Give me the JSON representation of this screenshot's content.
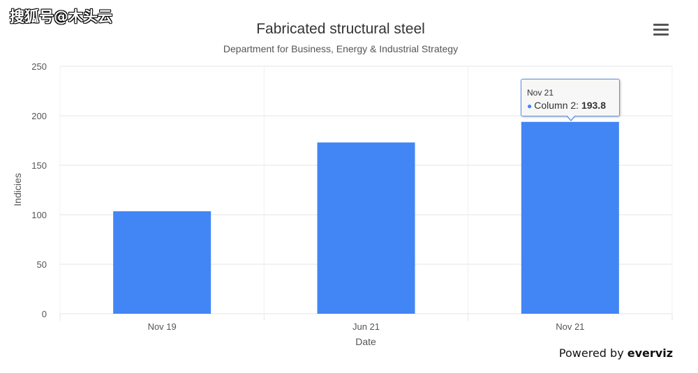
{
  "watermark": "搜狐号@木头云",
  "menu": {
    "icon": "hamburger-menu-icon"
  },
  "credits": {
    "prefix": "Powered by",
    "brand": "everviz"
  },
  "tooltip": {
    "header": "Nov 21",
    "series": "Column 2",
    "value": "193.8"
  },
  "colors": {
    "bar": "#4285f4",
    "grid": "#e6e6e6",
    "tooltip_border": "#5b8fe8"
  },
  "chart_data": {
    "type": "bar",
    "title": "Fabricated structural steel",
    "subtitle": "Department for Business, Energy & Industrial Strategy",
    "xlabel": "Date",
    "ylabel": "Indicies",
    "categories": [
      "Nov 19",
      "Jun 21",
      "Nov 21"
    ],
    "series": [
      {
        "name": "Column 2",
        "values": [
          103.5,
          173.0,
          193.8
        ]
      }
    ],
    "ylim": [
      0,
      250
    ],
    "yticks": [
      0,
      50,
      100,
      150,
      200,
      250
    ],
    "grid": true,
    "legend": "none"
  }
}
